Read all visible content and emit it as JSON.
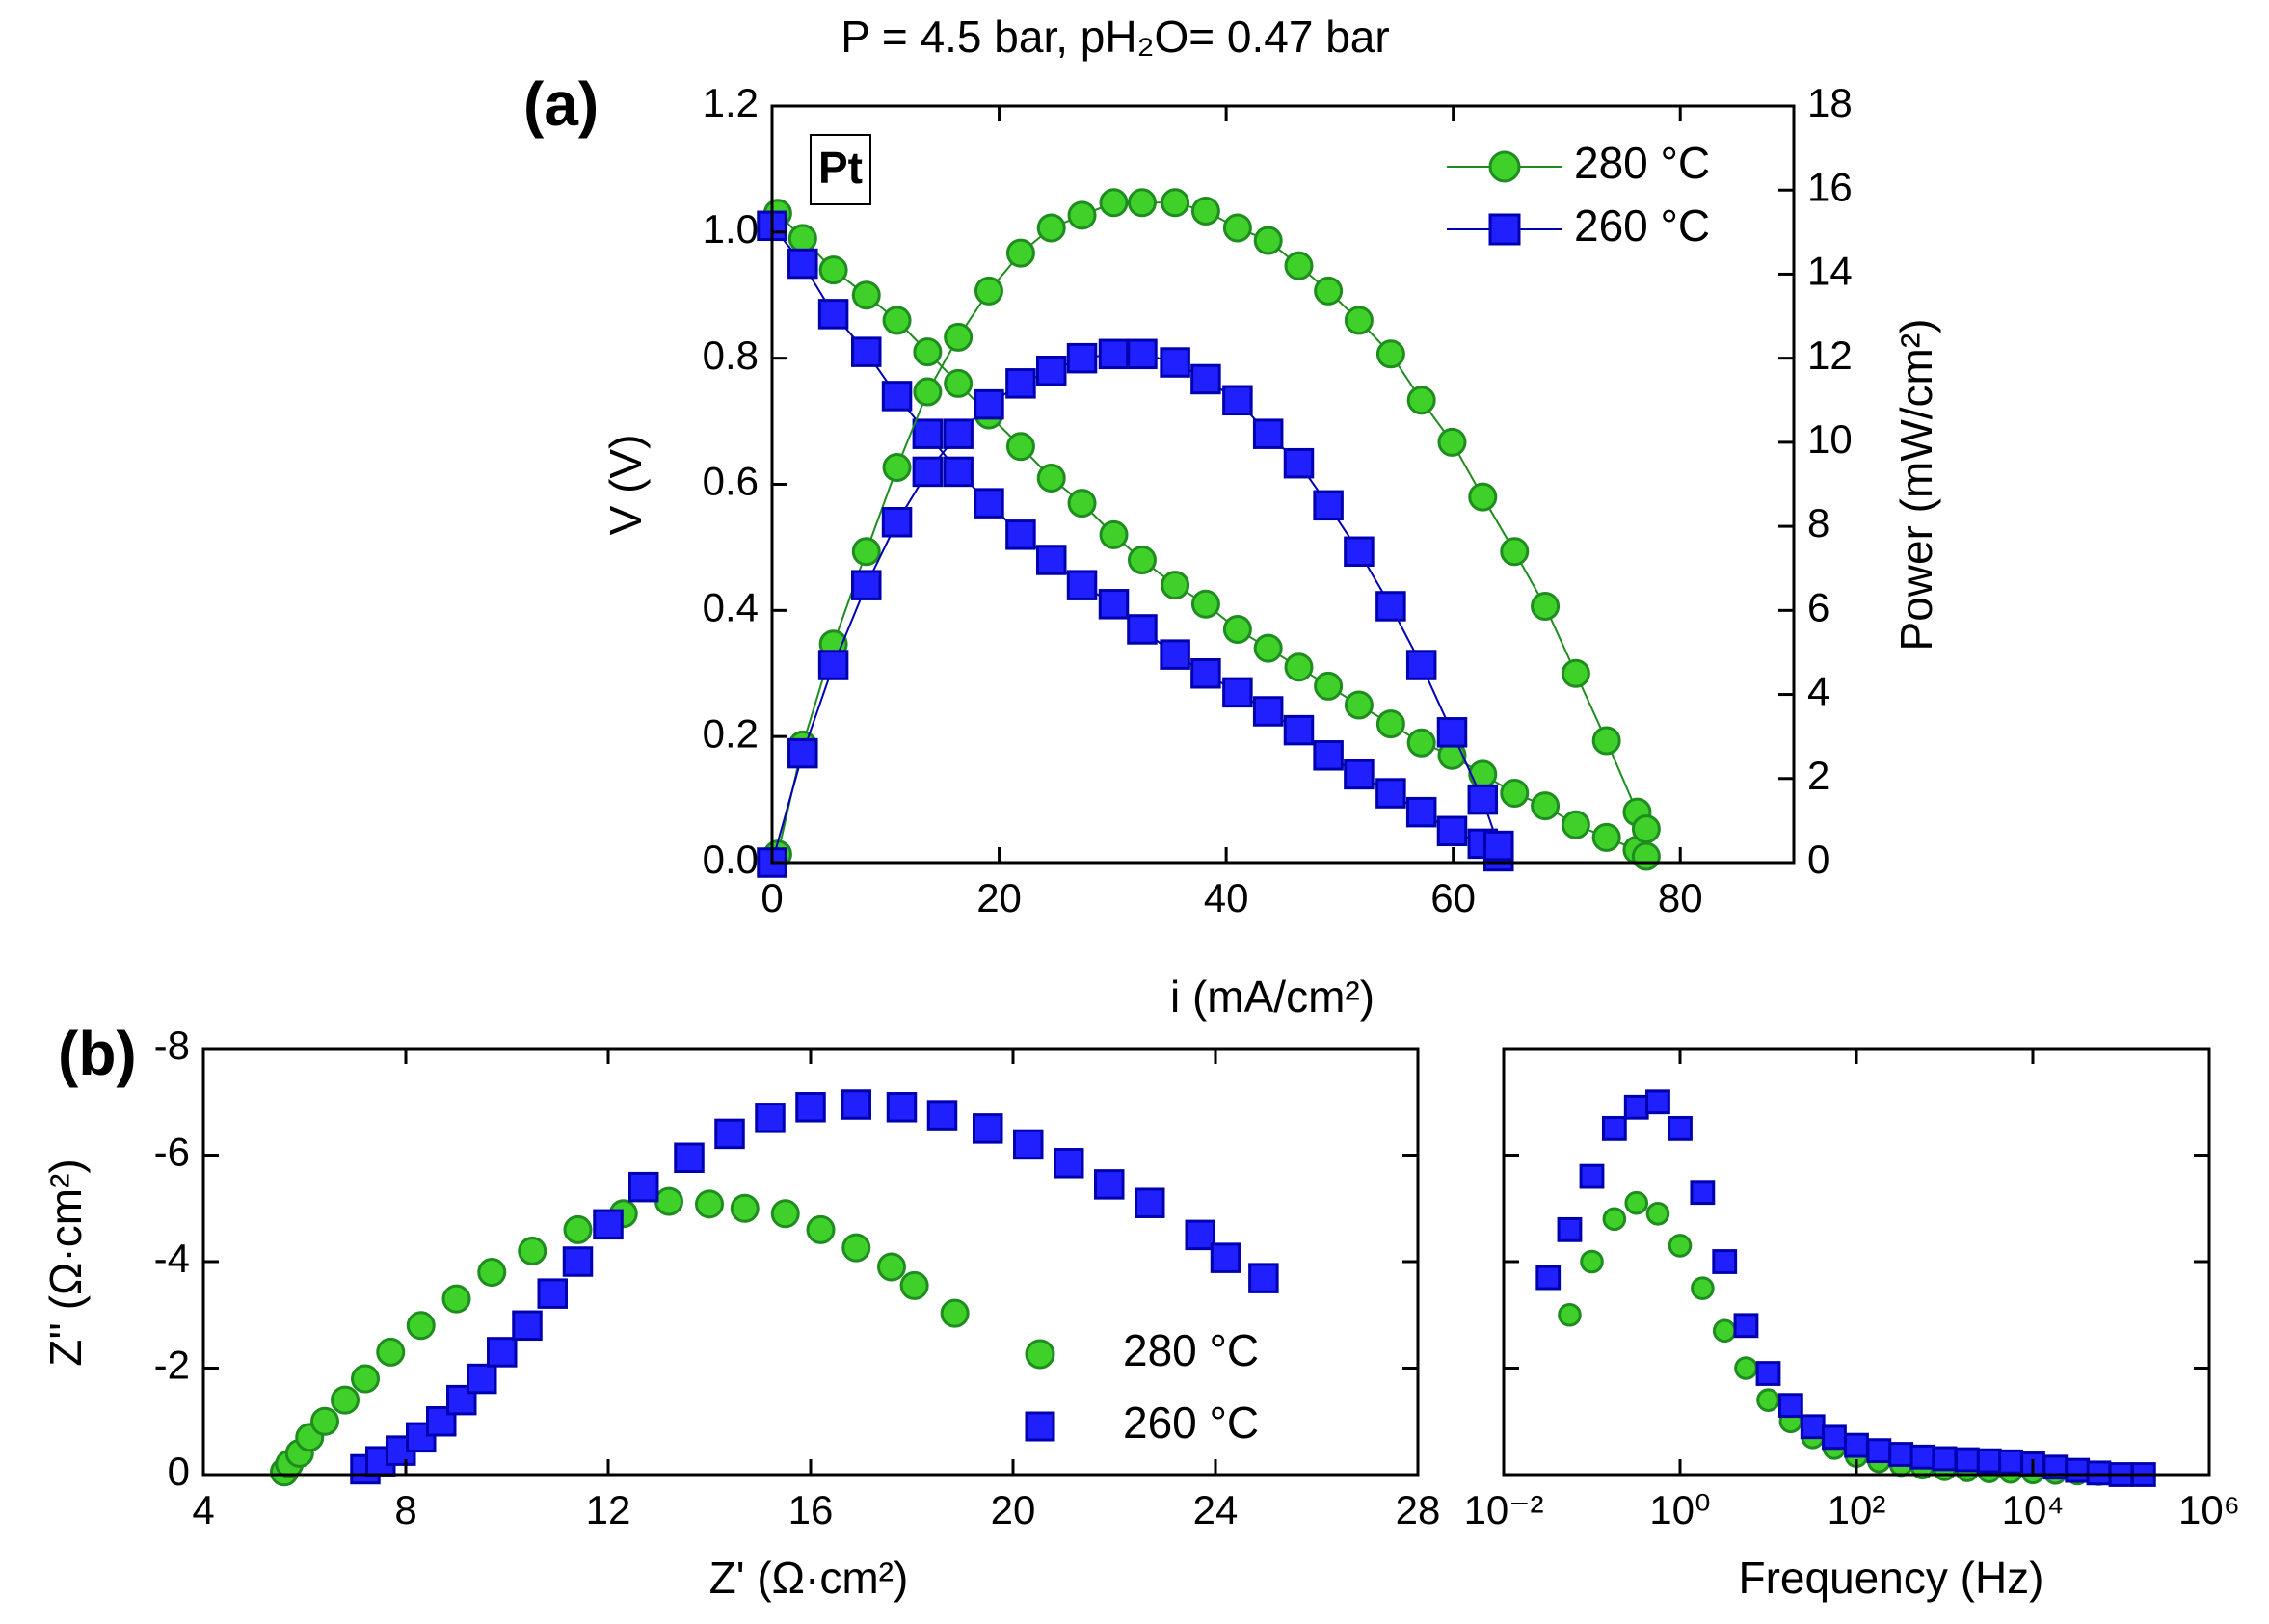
{
  "chart_data": [
    {
      "type": "scatter",
      "title": "P = 4.5 bar, pH₂O= 0.47 bar",
      "panel_label": "(a)",
      "annotation": "Pt",
      "xlabel": "i (mA/cm²)",
      "ylabel": "V (V)",
      "y2label": "Power (mW/cm²)",
      "xlim": [
        0,
        90
      ],
      "xticks": [
        0,
        20,
        40,
        60,
        80
      ],
      "ylim": [
        0,
        1.2
      ],
      "yticks": [
        {
          "value": 0,
          "label": "0.0"
        },
        0.2,
        0.4,
        0.6,
        0.8,
        {
          "value": 1,
          "label": "1.0"
        },
        1.2
      ],
      "y2lim": [
        0,
        18
      ],
      "y2ticks": [
        0,
        2,
        4,
        6,
        8,
        10,
        12,
        14,
        16,
        18
      ],
      "legend": "upper right",
      "series": [
        {
          "name": "280 °C",
          "color": "#3fd02a",
          "edge": "#1e8c1e",
          "marker": "circle",
          "line": true,
          "x": [
            0.5,
            2.7,
            5.4,
            8.3,
            11.0,
            13.7,
            16.4,
            19.1,
            21.9,
            24.6,
            27.3,
            30.1,
            32.6,
            35.5,
            38.2,
            41.0,
            43.7,
            46.4,
            49.0,
            51.7,
            54.5,
            57.2,
            59.9,
            62.6,
            65.4,
            68.1,
            70.8,
            73.5,
            76.2,
            77.0
          ],
          "values": [
            1.03,
            0.99,
            0.94,
            0.9,
            0.86,
            0.81,
            0.76,
            0.71,
            0.66,
            0.61,
            0.57,
            0.52,
            0.48,
            0.44,
            0.41,
            0.37,
            0.34,
            0.31,
            0.28,
            0.25,
            0.22,
            0.19,
            0.17,
            0.14,
            0.11,
            0.09,
            0.06,
            0.04,
            0.02,
            0.01
          ]
        },
        {
          "name": "260 °C",
          "color": "#2020ff",
          "edge": "#0000b0",
          "marker": "square",
          "line": true,
          "x": [
            0,
            2.7,
            5.4,
            8.3,
            11.0,
            13.7,
            16.4,
            19.1,
            21.9,
            24.6,
            27.3,
            30.1,
            32.6,
            35.5,
            38.2,
            41.0,
            43.7,
            46.4,
            49.0,
            51.7,
            54.5,
            57.2,
            59.9,
            62.6,
            64.0
          ],
          "values": [
            1.01,
            0.95,
            0.87,
            0.81,
            0.74,
            0.68,
            0.62,
            0.57,
            0.52,
            0.48,
            0.44,
            0.41,
            0.37,
            0.33,
            0.3,
            0.27,
            0.24,
            0.21,
            0.17,
            0.14,
            0.11,
            0.08,
            0.05,
            0.03,
            0.01
          ]
        },
        {
          "color": "#3fd02a",
          "edge": "#1e8c1e",
          "marker": "circle",
          "line": true,
          "axis": "y2",
          "x": [
            0.5,
            2.7,
            5.4,
            8.3,
            11.0,
            13.7,
            16.4,
            19.1,
            21.9,
            24.6,
            27.3,
            30.1,
            32.6,
            35.5,
            38.2,
            41.0,
            43.7,
            46.4,
            49.0,
            51.7,
            54.5,
            57.2,
            59.9,
            62.6,
            65.4,
            68.1,
            70.8,
            73.5,
            76.2,
            77.0
          ],
          "values": [
            0.2,
            2.8,
            5.2,
            7.4,
            9.4,
            11.2,
            12.5,
            13.6,
            14.5,
            15.1,
            15.4,
            15.7,
            15.7,
            15.7,
            15.5,
            15.1,
            14.8,
            14.2,
            13.6,
            12.9,
            12.1,
            11.0,
            10.0,
            8.7,
            7.4,
            6.1,
            4.5,
            2.9,
            1.2,
            0.8
          ]
        },
        {
          "color": "#2020ff",
          "edge": "#0000b0",
          "marker": "square",
          "line": true,
          "axis": "y2",
          "x": [
            0,
            2.7,
            5.4,
            8.3,
            11.0,
            13.7,
            16.4,
            19.1,
            21.9,
            24.6,
            27.3,
            30.1,
            32.6,
            35.5,
            38.2,
            41.0,
            43.7,
            46.4,
            49.0,
            51.7,
            54.5,
            57.2,
            59.9,
            62.6,
            64.0
          ],
          "values": [
            0.0,
            2.6,
            4.7,
            6.6,
            8.1,
            9.3,
            10.2,
            10.9,
            11.4,
            11.7,
            12.0,
            12.1,
            12.1,
            11.9,
            11.5,
            11.0,
            10.2,
            9.5,
            8.5,
            7.4,
            6.1,
            4.7,
            3.1,
            1.5,
            0.4
          ]
        }
      ]
    },
    {
      "type": "scatter",
      "panel_label": "(b)",
      "xlabel": "Z' (Ω·cm²)",
      "ylabel": "Z'' (Ω·cm²)",
      "xlim": [
        4,
        28
      ],
      "xticks": [
        4,
        8,
        12,
        16,
        20,
        24,
        28
      ],
      "ylim": [
        0,
        -8
      ],
      "yticks": [
        0,
        -2,
        -4,
        -6,
        -8
      ],
      "legend": "lower right",
      "series": [
        {
          "name": "280 °C",
          "color": "#3fd02a",
          "edge": "#1e8c1e",
          "marker": "circle",
          "x": [
            5.6,
            5.7,
            5.9,
            6.1,
            6.4,
            6.8,
            7.2,
            7.7,
            8.3,
            9.0,
            9.7,
            10.5,
            11.4,
            12.3,
            13.2,
            14.0,
            14.7,
            15.5,
            16.2,
            16.9,
            17.6,
            18.05,
            18.85
          ],
          "values": [
            -0.05,
            -0.2,
            -0.4,
            -0.7,
            -1.0,
            -1.4,
            -1.8,
            -2.3,
            -2.8,
            -3.3,
            -3.8,
            -4.2,
            -4.6,
            -4.9,
            -5.13,
            -5.08,
            -5.0,
            -4.9,
            -4.6,
            -4.26,
            -3.9,
            -3.55,
            -3.03
          ]
        },
        {
          "name": "260 °C",
          "color": "#2020ff",
          "edge": "#0000b0",
          "marker": "square",
          "x": [
            7.2,
            7.5,
            7.9,
            8.3,
            8.7,
            9.1,
            9.5,
            9.9,
            10.4,
            10.9,
            11.4,
            12.0,
            12.7,
            13.6,
            14.4,
            15.2,
            16.0,
            16.9,
            17.8,
            18.6,
            19.5,
            20.3,
            21.1,
            21.9,
            22.7,
            23.7,
            24.2,
            24.95
          ],
          "values": [
            -0.1,
            -0.25,
            -0.45,
            -0.7,
            -1.0,
            -1.4,
            -1.8,
            -2.3,
            -2.8,
            -3.4,
            -4.0,
            -4.7,
            -5.4,
            -5.95,
            -6.4,
            -6.7,
            -6.9,
            -6.95,
            -6.9,
            -6.75,
            -6.5,
            -6.2,
            -5.85,
            -5.45,
            -5.1,
            -4.5,
            -4.07,
            -3.69
          ]
        }
      ]
    },
    {
      "type": "scatter",
      "xlabel": "Frequency (Hz)",
      "xlog": true,
      "xlim": [
        0.01,
        1000000
      ],
      "xticks": [
        {
          "value": 0.01,
          "label": "10⁻²"
        },
        {
          "value": 1,
          "label": "10⁰"
        },
        {
          "value": 100,
          "label": "10²"
        },
        {
          "value": 10000,
          "label": "10⁴"
        },
        {
          "value": 1000000,
          "label": "10⁶"
        }
      ],
      "ylim": [
        0,
        -8
      ],
      "yticks": [
        0,
        -2,
        -4,
        -6,
        -8
      ],
      "show_ytick_labels": false,
      "series": [
        {
          "color": "#3fd02a",
          "edge": "#1e8c1e",
          "marker": "circle",
          "x": [
            0.056,
            0.1,
            0.18,
            0.32,
            0.56,
            1,
            1.8,
            3.2,
            5.6,
            10,
            18,
            32,
            56,
            100,
            180,
            320,
            560,
            1000,
            1800,
            3200,
            5600,
            10000,
            18000,
            32000,
            56000,
            100000
          ],
          "values": [
            -3.0,
            -4.0,
            -4.8,
            -5.1,
            -4.9,
            -4.3,
            -3.5,
            -2.7,
            -2.0,
            -1.4,
            -1.0,
            -0.7,
            -0.5,
            -0.35,
            -0.25,
            -0.18,
            -0.13,
            -0.1,
            -0.08,
            -0.06,
            -0.05,
            -0.04,
            -0.03,
            -0.02,
            -0.01,
            0
          ]
        },
        {
          "color": "#2020ff",
          "edge": "#0000b0",
          "marker": "square",
          "x": [
            0.032,
            0.056,
            0.1,
            0.18,
            0.32,
            0.56,
            1,
            1.8,
            3.2,
            5.6,
            10,
            18,
            32,
            56,
            100,
            180,
            320,
            560,
            1000,
            1800,
            3200,
            5600,
            10000,
            18000,
            32000,
            56000,
            100000,
            180000
          ],
          "values": [
            -3.7,
            -4.6,
            -5.6,
            -6.5,
            -6.9,
            -7.0,
            -6.5,
            -5.3,
            -4.0,
            -2.8,
            -1.9,
            -1.3,
            -0.9,
            -0.7,
            -0.55,
            -0.45,
            -0.38,
            -0.33,
            -0.3,
            -0.28,
            -0.26,
            -0.24,
            -0.2,
            -0.14,
            -0.08,
            -0.03,
            0,
            0
          ]
        }
      ]
    }
  ]
}
